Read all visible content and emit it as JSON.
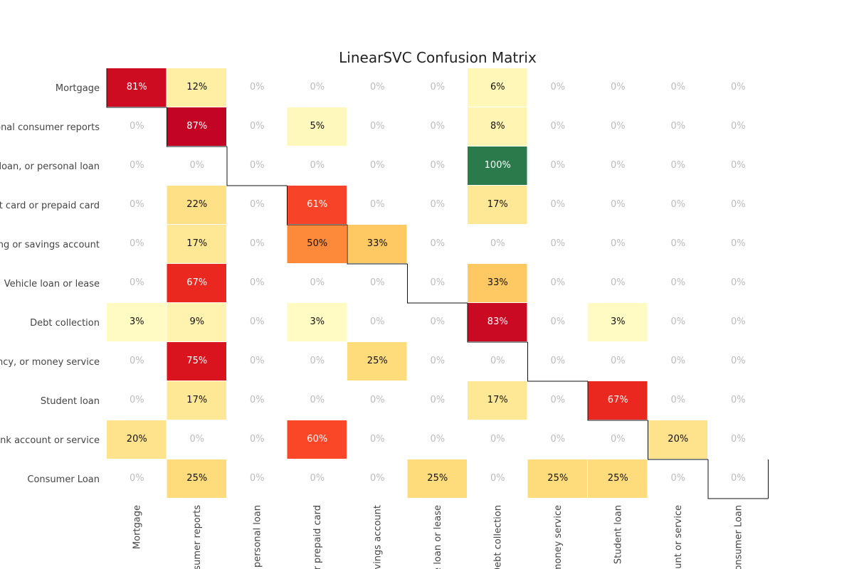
{
  "chart_data": {
    "type": "heatmap",
    "title": "LinearSVC Confusion Matrix",
    "row_labels": [
      "Mortgage",
      "Credit reporting, credit repair services, or other personal consumer reports",
      "Payday loan, title loan, or personal loan",
      "Credit card or prepaid card",
      "Checking or savings account",
      "Vehicle loan or lease",
      "Debt collection",
      "Money transfer, virtual currency, or money service",
      "Student loan",
      "Bank account or service",
      "Consumer Loan"
    ],
    "row_labels_visible": [
      "Mortgage",
      "sonal consumer reports",
      "e loan, or personal loan",
      "dit card or prepaid card",
      "king or savings account",
      "Vehicle loan or lease",
      "Debt collection",
      "ency, or money service",
      "Student loan",
      "ank account or service",
      "Consumer Loan"
    ],
    "col_labels_visible": [
      "Mortgage",
      "nsumer reports",
      "r personal loan",
      "or prepaid card",
      "avings account",
      "e loan or lease",
      "Debt collection",
      "money service",
      "Student loan",
      "ount or service",
      "onsumer Loan"
    ],
    "values_percent": [
      [
        81,
        12,
        0,
        0,
        0,
        0,
        6,
        0,
        0,
        0,
        0
      ],
      [
        0,
        87,
        0,
        5,
        0,
        0,
        8,
        0,
        0,
        0,
        0
      ],
      [
        0,
        0,
        0,
        0,
        0,
        0,
        100,
        0,
        0,
        0,
        0
      ],
      [
        0,
        22,
        0,
        61,
        0,
        0,
        17,
        0,
        0,
        0,
        0
      ],
      [
        0,
        17,
        0,
        50,
        33,
        0,
        0,
        0,
        0,
        0,
        0
      ],
      [
        0,
        67,
        0,
        0,
        0,
        0,
        33,
        0,
        0,
        0,
        0
      ],
      [
        3,
        9,
        0,
        3,
        0,
        0,
        83,
        0,
        3,
        0,
        0
      ],
      [
        0,
        75,
        0,
        0,
        25,
        0,
        0,
        0,
        0,
        0,
        0
      ],
      [
        0,
        17,
        0,
        0,
        0,
        0,
        17,
        0,
        67,
        0,
        0
      ],
      [
        20,
        0,
        0,
        60,
        0,
        0,
        0,
        0,
        0,
        20,
        0
      ],
      [
        0,
        25,
        0,
        0,
        0,
        25,
        0,
        25,
        25,
        0,
        0
      ]
    ],
    "value_format": "percent",
    "colormap": "YlOrRd",
    "diagonal_box": true,
    "grid": false,
    "colors": {
      "cell_100": "#2a7a4b",
      "zero_text": "#bbbbbb",
      "text_dark": "#111111",
      "text_light": "#ffffff",
      "diagonal_line": "#111111"
    }
  }
}
